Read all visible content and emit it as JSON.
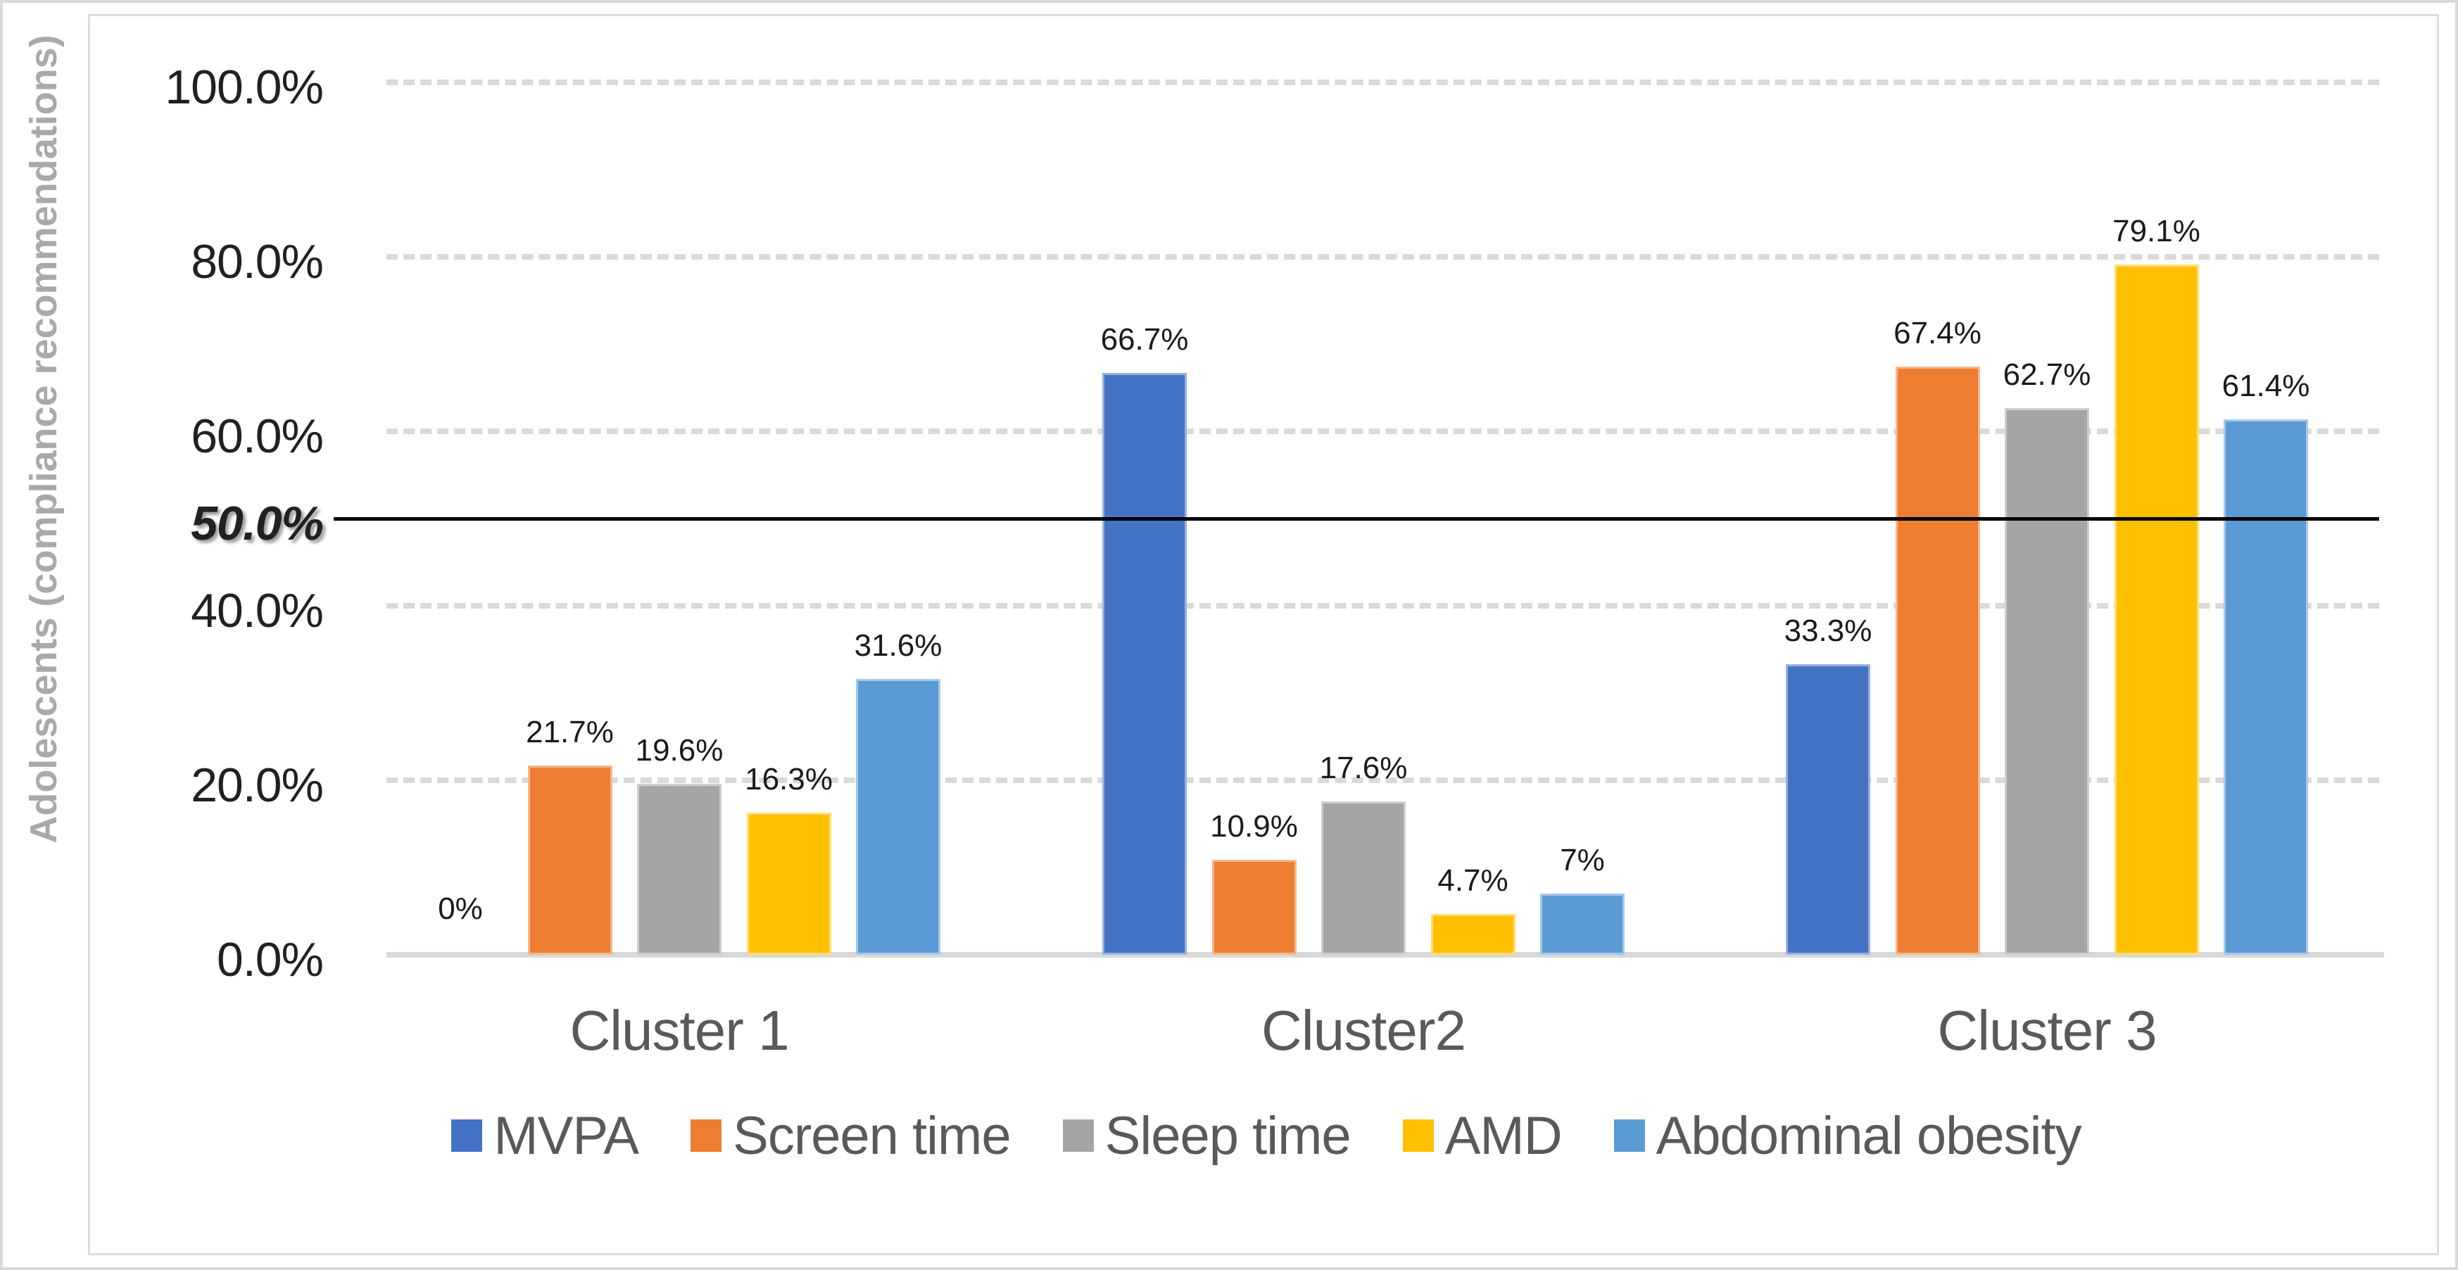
{
  "chart_data": {
    "type": "bar",
    "title": "",
    "ylabel": "Adolescents (compliance recommendations)",
    "xlabel": "",
    "categories": [
      "Cluster 1",
      "Cluster2",
      "Cluster 3"
    ],
    "series": [
      {
        "name": "MVPA",
        "color": "#4472C4",
        "values": [
          0,
          66.7,
          33.3
        ],
        "labels": [
          "0%",
          "66.7%",
          "33.3%"
        ]
      },
      {
        "name": "Screen time",
        "color": "#ED7D31",
        "values": [
          21.7,
          10.9,
          67.4
        ],
        "labels": [
          "21.7%",
          "10.9%",
          "67.4%"
        ]
      },
      {
        "name": "Sleep time",
        "color": "#A5A5A5",
        "values": [
          19.6,
          17.6,
          62.7
        ],
        "labels": [
          "19.6%",
          "17.6%",
          "62.7%"
        ]
      },
      {
        "name": "AMD",
        "color": "#FFC000",
        "values": [
          16.3,
          4.7,
          79.1
        ],
        "labels": [
          "16.3%",
          "4.7%",
          "79.1%"
        ]
      },
      {
        "name": "Abdominal obesity",
        "color": "#5B9BD5",
        "values": [
          31.6,
          7,
          61.4
        ],
        "labels": [
          "31.6%",
          "7%",
          "61.4%"
        ]
      }
    ],
    "y_ticks": [
      {
        "label": "100.0%",
        "value": 100,
        "gridline": true,
        "emphasis": false
      },
      {
        "label": "80.0%",
        "value": 80,
        "gridline": true,
        "emphasis": false
      },
      {
        "label": "60.0%",
        "value": 60,
        "gridline": true,
        "emphasis": false
      },
      {
        "label": "50.0%",
        "value": 50,
        "gridline": false,
        "emphasis": true
      },
      {
        "label": "40.0%",
        "value": 40,
        "gridline": true,
        "emphasis": false
      },
      {
        "label": "20.0%",
        "value": 20,
        "gridline": true,
        "emphasis": false
      },
      {
        "label": "0.0%",
        "value": 0,
        "gridline": false,
        "emphasis": false
      }
    ],
    "reference_line": {
      "value": 50,
      "label": "50.0%",
      "color": "#000000"
    },
    "ylim": [
      0,
      100
    ],
    "grid": "horizontal dashed every 20%, light gray",
    "legend_position": "bottom",
    "gridline_color": "#d9d9d9",
    "axis_text_color": "#212121",
    "category_text_color": "#595959"
  }
}
